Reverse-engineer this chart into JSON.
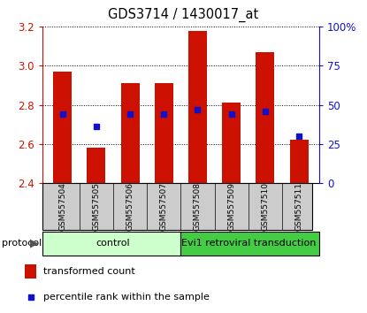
{
  "title": "GDS3714 / 1430017_at",
  "samples": [
    "GSM557504",
    "GSM557505",
    "GSM557506",
    "GSM557507",
    "GSM557508",
    "GSM557509",
    "GSM557510",
    "GSM557511"
  ],
  "transformed_count": [
    2.97,
    2.58,
    2.91,
    2.91,
    3.18,
    2.81,
    3.07,
    2.62
  ],
  "percentile_rank_pct": [
    44,
    36,
    44,
    44,
    47,
    44,
    46,
    30
  ],
  "bar_base": 2.4,
  "ylim": [
    2.4,
    3.2
  ],
  "yticks_left": [
    2.4,
    2.6,
    2.8,
    3.0,
    3.2
  ],
  "yticks_right": [
    0,
    25,
    50,
    75,
    100
  ],
  "bar_color": "#cc1100",
  "dot_color": "#1111cc",
  "groups": [
    {
      "label": "control",
      "start": 0,
      "end": 4,
      "color": "#ccffcc"
    },
    {
      "label": "Evi1 retroviral transduction",
      "start": 4,
      "end": 8,
      "color": "#44cc44"
    }
  ],
  "protocol_label": "protocol",
  "legend_items": [
    {
      "label": "transformed count",
      "color": "#cc1100"
    },
    {
      "label": "percentile rank within the sample",
      "color": "#1111cc"
    }
  ],
  "left_axis_color": "#cc1100",
  "right_axis_color": "#1111cc",
  "bar_width": 0.55,
  "sample_area_color": "#cccccc"
}
